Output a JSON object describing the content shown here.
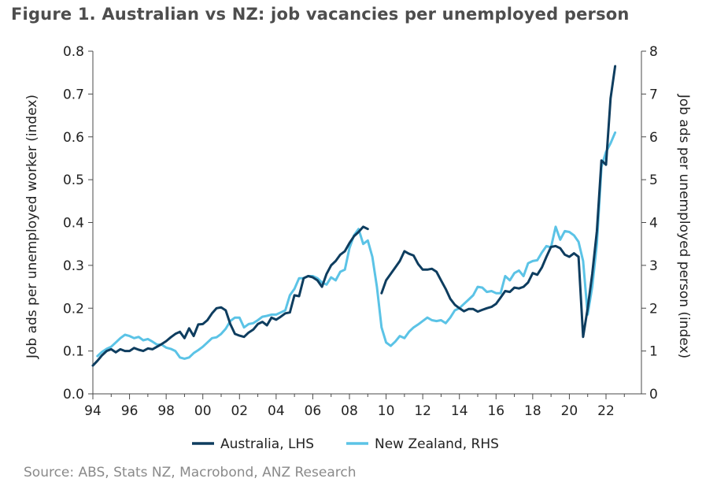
{
  "title": "Figure 1. Australian vs NZ: job vacancies per unemployed person",
  "source": "Source: ABS, Stats NZ, Macrobond, ANZ Research",
  "chart_data": {
    "type": "line",
    "xlim": [
      1994,
      2024
    ],
    "x_ticks": [
      1994,
      1996,
      1998,
      2000,
      2002,
      2004,
      2006,
      2008,
      2010,
      2012,
      2014,
      2016,
      2018,
      2020,
      2022
    ],
    "x_tick_labels": [
      "94",
      "96",
      "98",
      "00",
      "02",
      "04",
      "06",
      "08",
      "10",
      "12",
      "14",
      "16",
      "18",
      "20",
      "22"
    ],
    "left_axis": {
      "label": "Job ads per unemployed worker (index)",
      "ylim": [
        0,
        0.8
      ],
      "ticks": [
        0.0,
        0.1,
        0.2,
        0.3,
        0.4,
        0.5,
        0.6,
        0.7,
        0.8
      ],
      "tick_labels": [
        "0.0",
        "0.1",
        "0.2",
        "0.3",
        "0.4",
        "0.5",
        "0.6",
        "0.7",
        "0.8"
      ]
    },
    "right_axis": {
      "label": "Job ads per unemployed person (index)",
      "ylim": [
        0,
        8
      ],
      "ticks": [
        0,
        1,
        2,
        3,
        4,
        5,
        6,
        7,
        8
      ],
      "tick_labels": [
        "0",
        "1",
        "2",
        "3",
        "4",
        "5",
        "6",
        "7",
        "8"
      ]
    },
    "legend_position": "bottom",
    "grid": false,
    "series": [
      {
        "name": "Australia, LHS",
        "axis": "left",
        "color": "#0e3d5f",
        "segments": [
          [
            [
              1994.0,
              0.066
            ],
            [
              1994.25,
              0.077
            ],
            [
              1994.5,
              0.09
            ],
            [
              1994.75,
              0.1
            ],
            [
              1995.0,
              0.104
            ],
            [
              1995.25,
              0.097
            ],
            [
              1995.5,
              0.104
            ],
            [
              1995.75,
              0.1
            ],
            [
              1996.0,
              0.1
            ],
            [
              1996.25,
              0.107
            ],
            [
              1996.5,
              0.103
            ],
            [
              1996.75,
              0.1
            ],
            [
              1997.0,
              0.106
            ],
            [
              1997.25,
              0.104
            ],
            [
              1997.5,
              0.11
            ],
            [
              1997.75,
              0.116
            ],
            [
              1998.0,
              0.123
            ],
            [
              1998.25,
              0.132
            ],
            [
              1998.5,
              0.14
            ],
            [
              1998.75,
              0.145
            ],
            [
              1999.0,
              0.13
            ],
            [
              1999.25,
              0.153
            ],
            [
              1999.5,
              0.135
            ],
            [
              1999.75,
              0.162
            ],
            [
              2000.0,
              0.163
            ],
            [
              2000.25,
              0.172
            ],
            [
              2000.5,
              0.188
            ],
            [
              2000.75,
              0.2
            ],
            [
              2001.0,
              0.202
            ],
            [
              2001.25,
              0.195
            ],
            [
              2001.5,
              0.163
            ],
            [
              2001.75,
              0.14
            ],
            [
              2002.0,
              0.136
            ],
            [
              2002.25,
              0.133
            ],
            [
              2002.5,
              0.143
            ],
            [
              2002.75,
              0.15
            ],
            [
              2003.0,
              0.163
            ],
            [
              2003.25,
              0.168
            ],
            [
              2003.5,
              0.16
            ],
            [
              2003.75,
              0.178
            ],
            [
              2004.0,
              0.173
            ],
            [
              2004.25,
              0.18
            ],
            [
              2004.5,
              0.188
            ],
            [
              2004.75,
              0.19
            ],
            [
              2005.0,
              0.23
            ],
            [
              2005.25,
              0.228
            ],
            [
              2005.5,
              0.27
            ],
            [
              2005.75,
              0.275
            ],
            [
              2006.0,
              0.272
            ],
            [
              2006.25,
              0.265
            ],
            [
              2006.5,
              0.25
            ],
            [
              2006.75,
              0.28
            ],
            [
              2007.0,
              0.3
            ],
            [
              2007.25,
              0.31
            ],
            [
              2007.5,
              0.325
            ],
            [
              2007.75,
              0.333
            ],
            [
              2008.0,
              0.352
            ],
            [
              2008.25,
              0.368
            ],
            [
              2008.5,
              0.378
            ],
            [
              2008.75,
              0.39
            ],
            [
              2009.0,
              0.385
            ]
          ],
          [
            [
              2009.75,
              0.235
            ],
            [
              2010.0,
              0.265
            ],
            [
              2010.25,
              0.28
            ],
            [
              2010.5,
              0.295
            ],
            [
              2010.75,
              0.31
            ],
            [
              2011.0,
              0.333
            ],
            [
              2011.25,
              0.327
            ],
            [
              2011.5,
              0.323
            ],
            [
              2011.75,
              0.303
            ],
            [
              2012.0,
              0.29
            ],
            [
              2012.25,
              0.29
            ],
            [
              2012.5,
              0.292
            ],
            [
              2012.75,
              0.285
            ],
            [
              2013.0,
              0.265
            ],
            [
              2013.25,
              0.245
            ],
            [
              2013.5,
              0.222
            ],
            [
              2013.75,
              0.208
            ],
            [
              2014.0,
              0.2
            ],
            [
              2014.25,
              0.193
            ],
            [
              2014.5,
              0.198
            ],
            [
              2014.75,
              0.198
            ],
            [
              2015.0,
              0.192
            ],
            [
              2015.25,
              0.196
            ],
            [
              2015.5,
              0.2
            ],
            [
              2015.75,
              0.203
            ],
            [
              2016.0,
              0.21
            ],
            [
              2016.25,
              0.225
            ],
            [
              2016.5,
              0.24
            ],
            [
              2016.75,
              0.238
            ],
            [
              2017.0,
              0.248
            ],
            [
              2017.25,
              0.246
            ],
            [
              2017.5,
              0.25
            ],
            [
              2017.75,
              0.26
            ],
            [
              2018.0,
              0.282
            ],
            [
              2018.25,
              0.278
            ],
            [
              2018.5,
              0.295
            ],
            [
              2018.75,
              0.32
            ],
            [
              2019.0,
              0.343
            ],
            [
              2019.25,
              0.345
            ],
            [
              2019.5,
              0.34
            ],
            [
              2019.75,
              0.325
            ],
            [
              2020.0,
              0.32
            ],
            [
              2020.25,
              0.328
            ],
            [
              2020.5,
              0.32
            ],
            [
              2020.75,
              0.133
            ],
            [
              2021.0,
              0.2
            ],
            [
              2021.25,
              0.28
            ],
            [
              2021.5,
              0.38
            ],
            [
              2021.75,
              0.545
            ],
            [
              2022.0,
              0.535
            ],
            [
              2022.25,
              0.69
            ],
            [
              2022.5,
              0.765
            ]
          ]
        ]
      },
      {
        "name": "New Zealand, RHS",
        "axis": "right",
        "color": "#5bc3e6",
        "segments": [
          [
            [
              1994.25,
              0.88
            ],
            [
              1994.5,
              0.98
            ],
            [
              1994.75,
              1.05
            ],
            [
              1995.0,
              1.1
            ],
            [
              1995.25,
              1.2
            ],
            [
              1995.5,
              1.3
            ],
            [
              1995.75,
              1.38
            ],
            [
              1996.0,
              1.35
            ],
            [
              1996.25,
              1.3
            ],
            [
              1996.5,
              1.33
            ],
            [
              1996.75,
              1.25
            ],
            [
              1997.0,
              1.28
            ],
            [
              1997.25,
              1.22
            ],
            [
              1997.5,
              1.15
            ],
            [
              1997.75,
              1.15
            ],
            [
              1998.0,
              1.08
            ],
            [
              1998.25,
              1.05
            ],
            [
              1998.5,
              1.0
            ],
            [
              1998.75,
              0.85
            ],
            [
              1999.0,
              0.82
            ],
            [
              1999.25,
              0.85
            ],
            [
              1999.5,
              0.95
            ],
            [
              1999.75,
              1.02
            ],
            [
              2000.0,
              1.1
            ],
            [
              2000.25,
              1.2
            ],
            [
              2000.5,
              1.3
            ],
            [
              2000.75,
              1.32
            ],
            [
              2001.0,
              1.4
            ],
            [
              2001.25,
              1.52
            ],
            [
              2001.5,
              1.7
            ],
            [
              2001.75,
              1.78
            ],
            [
              2002.0,
              1.78
            ],
            [
              2002.25,
              1.55
            ],
            [
              2002.5,
              1.63
            ],
            [
              2002.75,
              1.65
            ],
            [
              2003.0,
              1.72
            ],
            [
              2003.25,
              1.8
            ],
            [
              2003.5,
              1.82
            ],
            [
              2003.75,
              1.85
            ],
            [
              2004.0,
              1.85
            ],
            [
              2004.25,
              1.9
            ],
            [
              2004.5,
              1.95
            ],
            [
              2004.75,
              2.3
            ],
            [
              2005.0,
              2.45
            ],
            [
              2005.25,
              2.7
            ],
            [
              2005.5,
              2.7
            ],
            [
              2005.75,
              2.75
            ],
            [
              2006.0,
              2.75
            ],
            [
              2006.25,
              2.7
            ],
            [
              2006.5,
              2.6
            ],
            [
              2006.75,
              2.55
            ],
            [
              2007.0,
              2.72
            ],
            [
              2007.25,
              2.65
            ],
            [
              2007.5,
              2.85
            ],
            [
              2007.75,
              2.9
            ],
            [
              2008.0,
              3.4
            ],
            [
              2008.25,
              3.7
            ],
            [
              2008.5,
              3.85
            ],
            [
              2008.75,
              3.5
            ],
            [
              2009.0,
              3.58
            ],
            [
              2009.25,
              3.2
            ],
            [
              2009.5,
              2.5
            ],
            [
              2009.75,
              1.55
            ],
            [
              2010.0,
              1.2
            ],
            [
              2010.25,
              1.12
            ],
            [
              2010.5,
              1.22
            ],
            [
              2010.75,
              1.35
            ],
            [
              2011.0,
              1.3
            ],
            [
              2011.25,
              1.45
            ],
            [
              2011.5,
              1.55
            ],
            [
              2011.75,
              1.62
            ],
            [
              2012.0,
              1.7
            ],
            [
              2012.25,
              1.78
            ],
            [
              2012.5,
              1.72
            ],
            [
              2012.75,
              1.7
            ],
            [
              2013.0,
              1.72
            ],
            [
              2013.25,
              1.65
            ],
            [
              2013.5,
              1.78
            ],
            [
              2013.75,
              1.95
            ],
            [
              2014.0,
              2.0
            ],
            [
              2014.25,
              2.1
            ],
            [
              2014.5,
              2.2
            ],
            [
              2014.75,
              2.3
            ],
            [
              2015.0,
              2.5
            ],
            [
              2015.25,
              2.48
            ],
            [
              2015.5,
              2.38
            ],
            [
              2015.75,
              2.4
            ],
            [
              2016.0,
              2.35
            ],
            [
              2016.25,
              2.35
            ],
            [
              2016.5,
              2.75
            ],
            [
              2016.75,
              2.65
            ],
            [
              2017.0,
              2.82
            ],
            [
              2017.25,
              2.88
            ],
            [
              2017.5,
              2.75
            ],
            [
              2017.75,
              3.05
            ],
            [
              2018.0,
              3.1
            ],
            [
              2018.25,
              3.12
            ],
            [
              2018.5,
              3.3
            ],
            [
              2018.75,
              3.45
            ],
            [
              2019.0,
              3.42
            ],
            [
              2019.25,
              3.9
            ],
            [
              2019.5,
              3.6
            ],
            [
              2019.75,
              3.8
            ],
            [
              2020.0,
              3.78
            ],
            [
              2020.25,
              3.7
            ],
            [
              2020.5,
              3.55
            ],
            [
              2020.75,
              3.1
            ],
            [
              2021.0,
              1.85
            ],
            [
              2021.25,
              2.5
            ],
            [
              2021.5,
              3.5
            ],
            [
              2021.75,
              5.3
            ],
            [
              2022.0,
              5.65
            ],
            [
              2022.25,
              5.85
            ],
            [
              2022.5,
              6.1
            ]
          ]
        ]
      }
    ]
  }
}
